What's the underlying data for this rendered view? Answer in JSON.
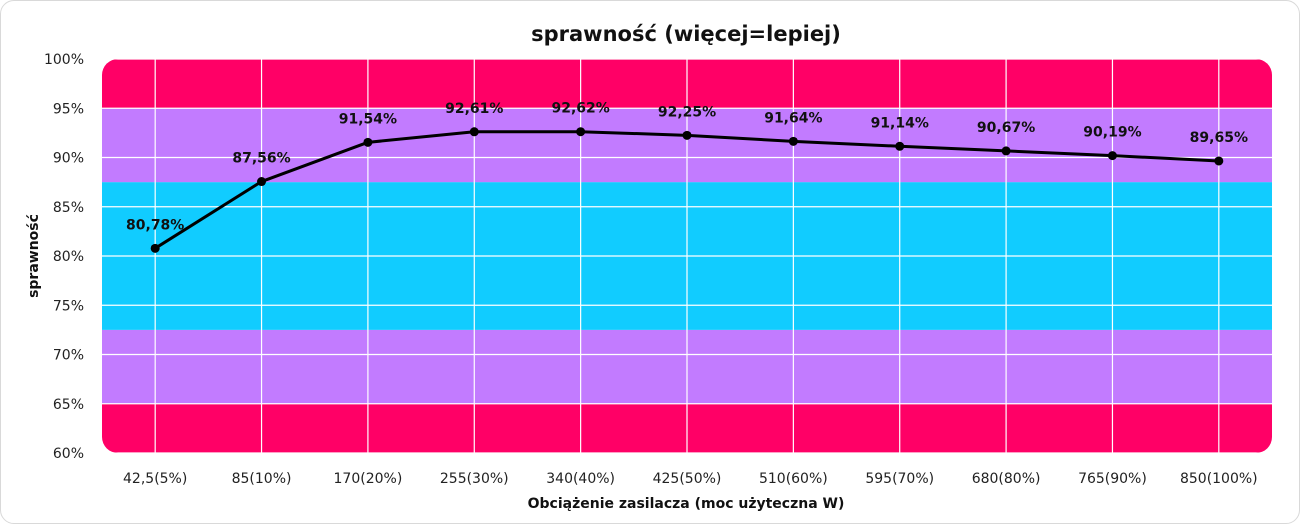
{
  "chart_data": {
    "type": "line",
    "title": "sprawność (więcej=lepiej)",
    "xlabel": "Obciążenie zasilacza (moc użyteczna W)",
    "ylabel": "sprawność",
    "categories": [
      "42,5(5%)",
      "85(10%)",
      "170(20%)",
      "255(30%)",
      "340(40%)",
      "425(50%)",
      "510(60%)",
      "595(70%)",
      "680(80%)",
      "765(90%)",
      "850(100%)"
    ],
    "series": [
      {
        "values": [
          80.78,
          87.56,
          91.54,
          92.61,
          92.62,
          92.25,
          91.64,
          91.14,
          90.67,
          90.19,
          89.65
        ],
        "data_labels": [
          "80,78%",
          "87,56%",
          "91,54%",
          "92,61%",
          "92,62%",
          "92,25%",
          "91,64%",
          "91,14%",
          "90,67%",
          "90,19%",
          "89,65%"
        ]
      }
    ],
    "ylim": [
      60,
      100
    ],
    "yticks": [
      60,
      65,
      70,
      75,
      80,
      85,
      90,
      95,
      100
    ],
    "ytick_labels": [
      "60%",
      "65%",
      "70%",
      "75%",
      "80%",
      "85%",
      "90%",
      "95%",
      "100%"
    ],
    "grid": true,
    "legend": "none",
    "background_bands": [
      {
        "from": 60,
        "to": 65,
        "color": "#ff0066"
      },
      {
        "from": 65,
        "to": 72.5,
        "color": "#c27bff"
      },
      {
        "from": 72.5,
        "to": 87.5,
        "color": "#11ccff"
      },
      {
        "from": 87.5,
        "to": 95,
        "color": "#c27bff"
      },
      {
        "from": 95,
        "to": 100,
        "color": "#ff0066"
      }
    ],
    "line_color": "#000000",
    "grid_color": "#ffffff"
  }
}
